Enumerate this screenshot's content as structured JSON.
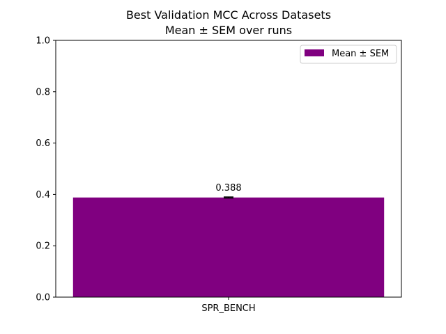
{
  "chart_data": {
    "type": "bar",
    "title": "Best Validation MCC Across Datasets",
    "subtitle": "Mean ± SEM over runs",
    "xlabel": "",
    "ylabel": "",
    "categories": [
      "SPR_BENCH"
    ],
    "series": [
      {
        "name": "Mean ± SEM",
        "values": [
          0.388
        ],
        "errors": [
          0.002
        ],
        "color": "#800080"
      }
    ],
    "data_labels": [
      "0.388"
    ],
    "ylim": [
      0.0,
      1.0
    ],
    "yticks": [
      "0.0",
      "0.2",
      "0.4",
      "0.6",
      "0.8",
      "1.0"
    ],
    "grid": false,
    "legend_position": "top-right"
  }
}
